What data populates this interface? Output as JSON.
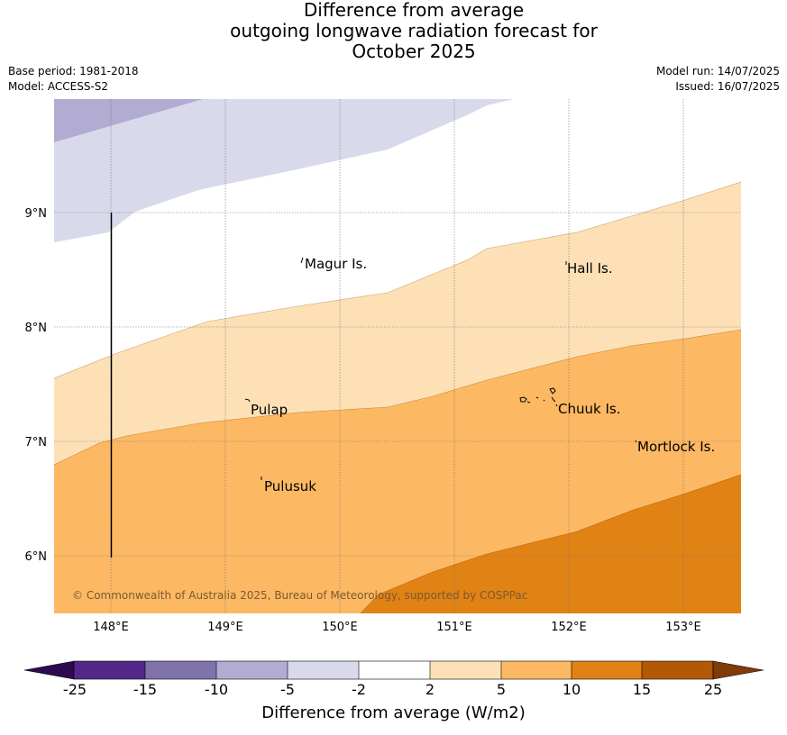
{
  "title": {
    "line1": "Difference from average",
    "line2": "outgoing longwave radiation forecast for",
    "line3": "October 2025"
  },
  "meta": {
    "base_period": "Base period: 1981-2018",
    "model": "Model: ACCESS-S2",
    "model_run": "Model run: 14/07/2025",
    "issued": "Issued: 16/07/2025"
  },
  "map": {
    "lon_ticks": [
      "148°E",
      "149°E",
      "150°E",
      "151°E",
      "152°E",
      "153°E"
    ],
    "lat_ticks": [
      "9°N",
      "8°N",
      "7°N",
      "6°N"
    ],
    "places": [
      {
        "name": "Magur Is."
      },
      {
        "name": "Hall Is."
      },
      {
        "name": "Pulap"
      },
      {
        "name": "Chuuk Is."
      },
      {
        "name": "Mortlock Is."
      },
      {
        "name": "Pulusuk"
      }
    ],
    "copyright": "© Commonwealth of Australia 2025, Bureau of Meteorology, supported by COSPPac"
  },
  "colorbar": {
    "tick_labels": [
      "-25",
      "-15",
      "-10",
      "-5",
      "-2",
      "2",
      "5",
      "10",
      "15",
      "25"
    ],
    "colors": {
      "under": "#2d0a4e",
      "c1": "#542788",
      "c2": "#8073ac",
      "c3": "#b2abd2",
      "c4": "#d8daeb",
      "c5": "#ffffff",
      "c6": "#fee0b6",
      "c7": "#fdb863",
      "c8": "#e08214",
      "c9": "#b35806",
      "over": "#7f3b08"
    },
    "label": "Difference from average (W/m2)"
  }
}
